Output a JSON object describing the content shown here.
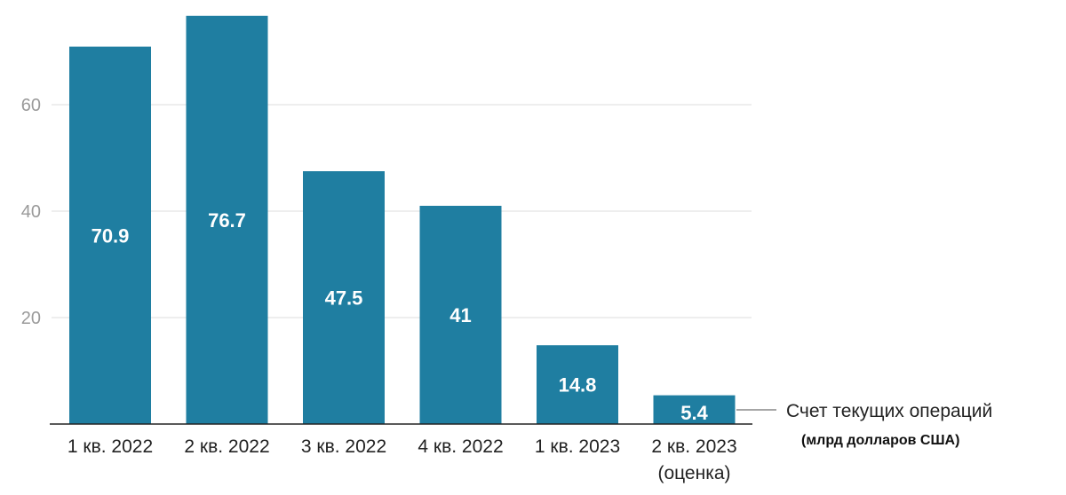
{
  "chart_data": {
    "type": "bar",
    "categories": [
      [
        "1 кв. 2022"
      ],
      [
        "2 кв. 2022"
      ],
      [
        "3 кв. 2022"
      ],
      [
        "4 кв. 2022"
      ],
      [
        "1 кв. 2023"
      ],
      [
        "2 кв. 2023",
        "(оценка)"
      ]
    ],
    "series": [
      {
        "name": "Счет текущих операций",
        "values": [
          70.9,
          76.7,
          47.5,
          41,
          14.8,
          5.4
        ],
        "value_labels": [
          "70.9",
          "76.7",
          "47.5",
          "41",
          "14.8",
          "5.4"
        ]
      }
    ],
    "series_unit": "(млрд долларов США)",
    "y_ticks": [
      "20",
      "40",
      "60"
    ],
    "ylim": [
      0,
      80
    ],
    "grid": true,
    "legend": "inline label at right of last bar",
    "colors": {
      "bar": "#1f7ea1"
    }
  }
}
